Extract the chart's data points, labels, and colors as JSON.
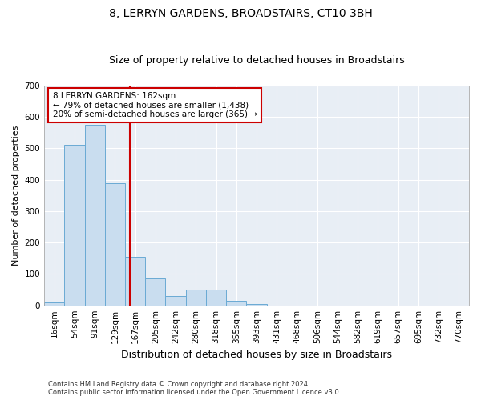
{
  "title": "8, LERRYN GARDENS, BROADSTAIRS, CT10 3BH",
  "subtitle": "Size of property relative to detached houses in Broadstairs",
  "xlabel": "Distribution of detached houses by size in Broadstairs",
  "ylabel": "Number of detached properties",
  "footnote1": "Contains HM Land Registry data © Crown copyright and database right 2024.",
  "footnote2": "Contains public sector information licensed under the Open Government Licence v3.0.",
  "categories": [
    "16sqm",
    "54sqm",
    "91sqm",
    "129sqm",
    "167sqm",
    "205sqm",
    "242sqm",
    "280sqm",
    "318sqm",
    "355sqm",
    "393sqm",
    "431sqm",
    "468sqm",
    "506sqm",
    "544sqm",
    "582sqm",
    "619sqm",
    "657sqm",
    "695sqm",
    "732sqm",
    "770sqm"
  ],
  "values": [
    10,
    510,
    575,
    390,
    155,
    85,
    30,
    50,
    50,
    15,
    5,
    0,
    0,
    0,
    0,
    0,
    0,
    0,
    0,
    0,
    0
  ],
  "bar_color": "#c9ddef",
  "bar_edge_color": "#6aaad4",
  "property_line_color": "#cc0000",
  "property_line_xindex": 3.75,
  "annotation_text": "8 LERRYN GARDENS: 162sqm\n← 79% of detached houses are smaller (1,438)\n20% of semi-detached houses are larger (365) →",
  "annotation_box_edgecolor": "#cc0000",
  "ylim": [
    0,
    700
  ],
  "yticks": [
    0,
    100,
    200,
    300,
    400,
    500,
    600,
    700
  ],
  "background_color": "#e8eef5",
  "grid_color": "#ffffff",
  "title_fontsize": 10,
  "subtitle_fontsize": 9,
  "ylabel_fontsize": 8,
  "xlabel_fontsize": 9,
  "tick_fontsize": 7.5,
  "annot_fontsize": 7.5
}
